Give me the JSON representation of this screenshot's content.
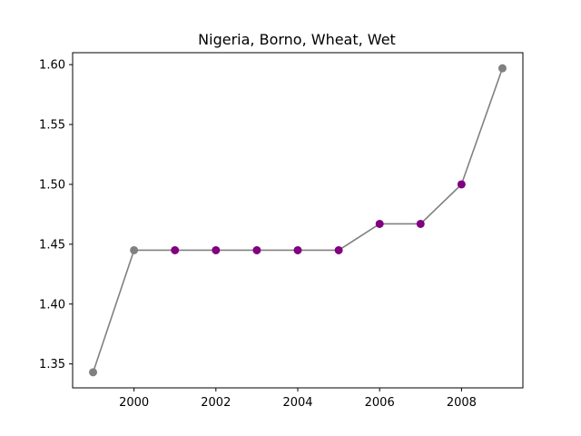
{
  "chart_data": {
    "type": "line",
    "title": "Nigeria, Borno, Wheat, Wet",
    "xlabel": "",
    "ylabel": "",
    "xlim": [
      1998.5,
      2009.5
    ],
    "ylim": [
      1.33,
      1.61
    ],
    "x_ticks": [
      2000,
      2002,
      2004,
      2006,
      2008
    ],
    "y_ticks": [
      1.35,
      1.4,
      1.45,
      1.5,
      1.55,
      1.6
    ],
    "x_tick_labels": [
      "2000",
      "2002",
      "2004",
      "2006",
      "2008"
    ],
    "y_tick_labels": [
      "1.35",
      "1.40",
      "1.45",
      "1.50",
      "1.55",
      "1.60"
    ],
    "grid": false,
    "line_color": "#808080",
    "series": [
      {
        "x": [
          1999,
          2000,
          2001,
          2002,
          2003,
          2004,
          2005,
          2006,
          2007,
          2008,
          2009
        ],
        "y": [
          1.343,
          1.445,
          1.445,
          1.445,
          1.445,
          1.445,
          1.445,
          1.467,
          1.467,
          1.5,
          1.597
        ],
        "point_colors": [
          "#808080",
          "#808080",
          "#800080",
          "#800080",
          "#800080",
          "#800080",
          "#800080",
          "#800080",
          "#800080",
          "#800080",
          "#808080"
        ]
      }
    ]
  }
}
